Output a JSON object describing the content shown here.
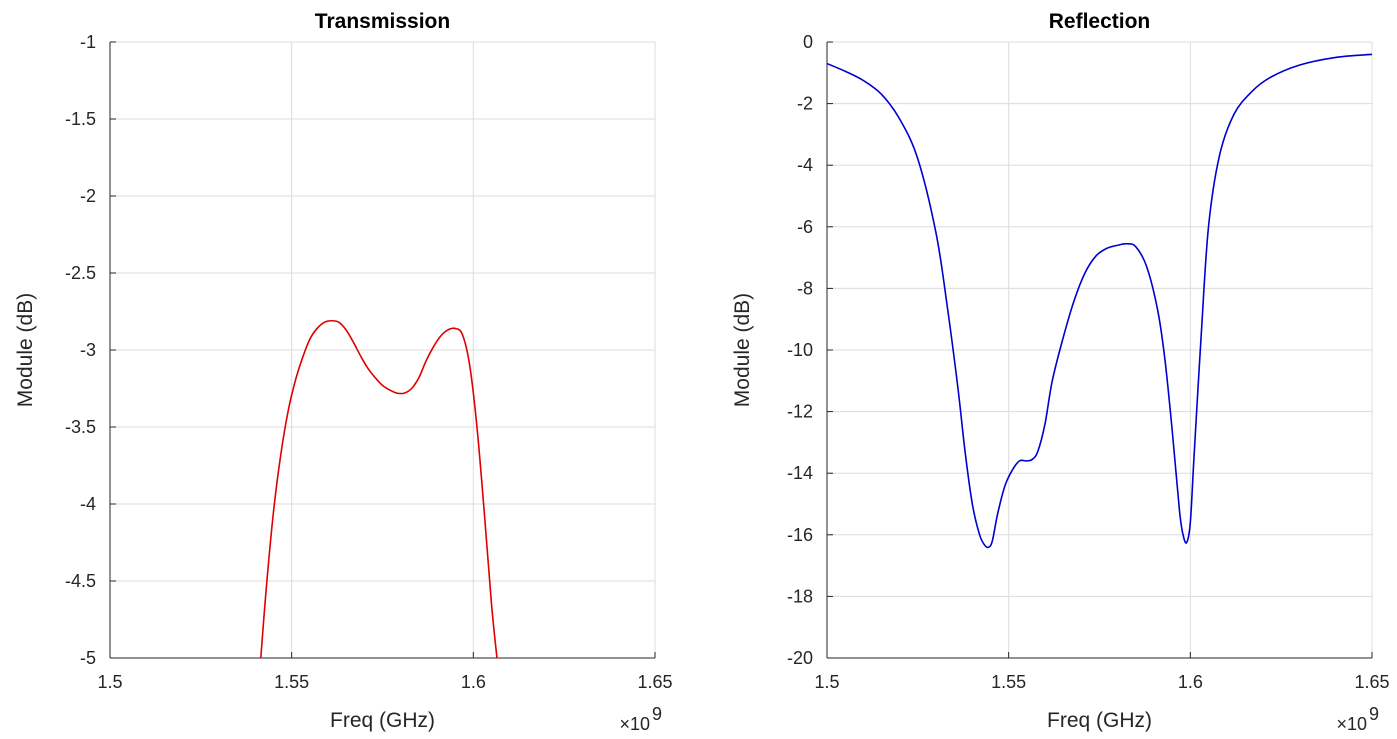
{
  "chart_data": [
    {
      "type": "line",
      "title": "Transmission",
      "xlabel": "Freq (GHz)",
      "ylabel": "Module (dB)",
      "x_multiplier": "×10",
      "x_multiplier_exp": "9",
      "xlim": [
        1500000000.0,
        1650000000.0
      ],
      "ylim": [
        -5,
        -1
      ],
      "xticks": [
        1500000000.0,
        1550000000.0,
        1600000000.0,
        1650000000.0
      ],
      "xtick_labels": [
        "1.5",
        "1.55",
        "1.6",
        "1.65"
      ],
      "yticks": [
        -1,
        -1.5,
        -2,
        -2.5,
        -3,
        -3.5,
        -4,
        -4.5,
        -5
      ],
      "ytick_labels": [
        "-1",
        "-1.5",
        "-2",
        "-2.5",
        "-3",
        "-3.5",
        "-4",
        "-4.5",
        "-5"
      ],
      "grid": true,
      "color": "#e00000",
      "series": [
        {
          "x": [
            1541500000.0,
            1543000000.0,
            1545000000.0,
            1547000000.0,
            1549000000.0,
            1551000000.0,
            1553000000.0,
            1555000000.0,
            1557000000.0,
            1559000000.0,
            1561000000.0,
            1563000000.0,
            1565000000.0,
            1567000000.0,
            1569000000.0,
            1571000000.0,
            1573000000.0,
            1575000000.0,
            1577000000.0,
            1579000000.0,
            1581000000.0,
            1583000000.0,
            1585000000.0,
            1587000000.0,
            1589000000.0,
            1591000000.0,
            1593000000.0,
            1595000000.0,
            1597000000.0,
            1599000000.0,
            1601000000.0,
            1603000000.0,
            1605000000.0,
            1606500000.0
          ],
          "values": [
            -5.0,
            -4.55,
            -4.05,
            -3.68,
            -3.4,
            -3.2,
            -3.05,
            -2.93,
            -2.86,
            -2.82,
            -2.81,
            -2.82,
            -2.87,
            -2.95,
            -3.04,
            -3.12,
            -3.18,
            -3.23,
            -3.26,
            -3.28,
            -3.28,
            -3.25,
            -3.18,
            -3.07,
            -2.98,
            -2.91,
            -2.87,
            -2.86,
            -2.9,
            -3.1,
            -3.5,
            -4.05,
            -4.65,
            -5.0
          ]
        }
      ]
    },
    {
      "type": "line",
      "title": "Reflection",
      "xlabel": "Freq (GHz)",
      "ylabel": "Module (dB)",
      "x_multiplier": "×10",
      "x_multiplier_exp": "9",
      "xlim": [
        1500000000.0,
        1650000000.0
      ],
      "ylim": [
        -20,
        0
      ],
      "xticks": [
        1500000000.0,
        1550000000.0,
        1600000000.0,
        1650000000.0
      ],
      "xtick_labels": [
        "1.5",
        "1.55",
        "1.6",
        "1.65"
      ],
      "yticks": [
        0,
        -2,
        -4,
        -6,
        -8,
        -10,
        -12,
        -14,
        -16,
        -18,
        -20
      ],
      "ytick_labels": [
        "0",
        "-2",
        "-4",
        "-6",
        "-8",
        "-10",
        "-12",
        "-14",
        "-16",
        "-18",
        "-20"
      ],
      "grid": true,
      "color": "#0000d0",
      "series": [
        {
          "x": [
            1500000000.0,
            1505000000.0,
            1510000000.0,
            1515000000.0,
            1520000000.0,
            1525000000.0,
            1530000000.0,
            1533000000.0,
            1536000000.0,
            1538000000.0,
            1540000000.0,
            1542000000.0,
            1543500000.0,
            1544500000.0,
            1545500000.0,
            1547000000.0,
            1549000000.0,
            1551000000.0,
            1553000000.0,
            1555000000.0,
            1556500000.0,
            1558000000.0,
            1560000000.0,
            1562000000.0,
            1565000000.0,
            1568000000.0,
            1571000000.0,
            1574000000.0,
            1577000000.0,
            1580000000.0,
            1582500000.0,
            1585000000.0,
            1588000000.0,
            1591000000.0,
            1593000000.0,
            1595000000.0,
            1597000000.0,
            1598000000.0,
            1599000000.0,
            1600000000.0,
            1601000000.0,
            1603000000.0,
            1605000000.0,
            1608000000.0,
            1612000000.0,
            1617000000.0,
            1622000000.0,
            1630000000.0,
            1640000000.0,
            1650000000.0
          ],
          "values": [
            -0.7,
            -0.95,
            -1.25,
            -1.7,
            -2.5,
            -3.8,
            -6.2,
            -8.5,
            -11.2,
            -13.3,
            -15.0,
            -16.0,
            -16.35,
            -16.4,
            -16.2,
            -15.3,
            -14.4,
            -13.9,
            -13.6,
            -13.6,
            -13.55,
            -13.3,
            -12.4,
            -11.0,
            -9.6,
            -8.4,
            -7.5,
            -6.95,
            -6.7,
            -6.6,
            -6.55,
            -6.65,
            -7.3,
            -8.7,
            -10.3,
            -12.6,
            -15.2,
            -16.0,
            -16.25,
            -15.6,
            -13.5,
            -9.5,
            -6.0,
            -3.7,
            -2.35,
            -1.6,
            -1.15,
            -0.75,
            -0.5,
            -0.4
          ]
        }
      ]
    }
  ]
}
